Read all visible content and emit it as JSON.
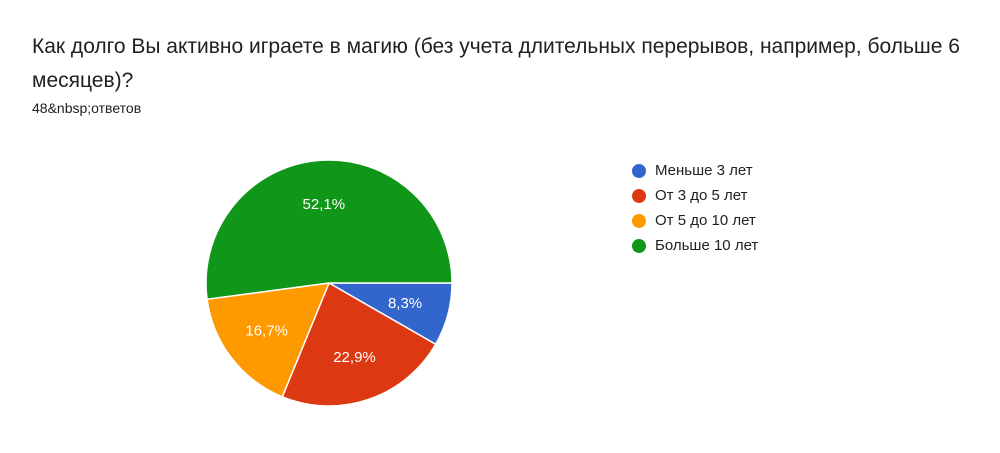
{
  "question": {
    "title": "Как долго Вы активно играете в магию (без учета длительных перерывов, например, больше 6 месяцев)?",
    "responses": "48&nbsp;ответов"
  },
  "chart_data": {
    "type": "pie",
    "title": "Как долго Вы активно играете в магию (без учета длительных перерывов, например, больше 6 месяцев)?",
    "legend_position": "right",
    "slices": [
      {
        "label": "Меньше 3 лет",
        "value": 8.3,
        "display": "8,3%",
        "color": "#3366cc"
      },
      {
        "label": "От 3 до 5 лет",
        "value": 22.9,
        "display": "22,9%",
        "color": "#dc3912"
      },
      {
        "label": "От 5 до 10 лет",
        "value": 16.7,
        "display": "16,7%",
        "color": "#ff9900"
      },
      {
        "label": "Больше 10 лет",
        "value": 52.1,
        "display": "52,1%",
        "color": "#109618"
      }
    ]
  }
}
